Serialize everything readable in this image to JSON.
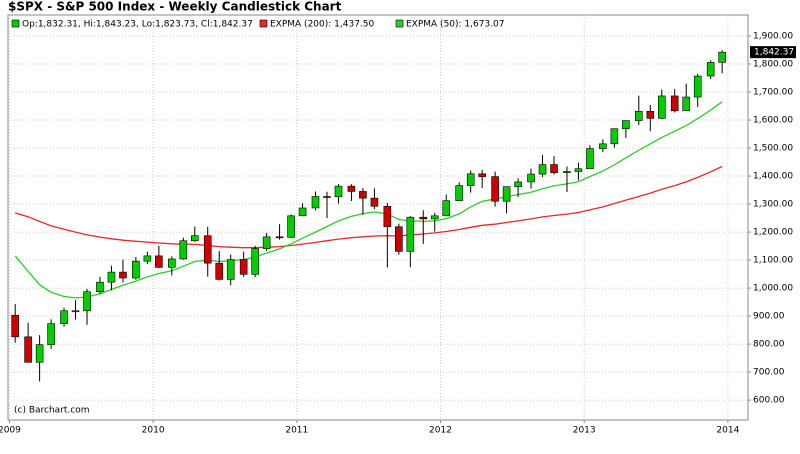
{
  "chart_data": {
    "type": "candlestick",
    "title": "$SPX - S&P 500 Index - Weekly Candlestick Chart",
    "ohlc_label": "Op:1,832.31, Hi:1,843.23, Lo:1,823.73, Cl:1,842.37",
    "last_label": "1,842.37",
    "credit": "(c) Barchart.com",
    "up_color": "#00cc00",
    "down_color": "#cc0000",
    "x": [
      2009.04,
      2009.13,
      2009.21,
      2009.29,
      2009.38,
      2009.46,
      2009.54,
      2009.63,
      2009.71,
      2009.79,
      2009.88,
      2009.96,
      2010.04,
      2010.13,
      2010.21,
      2010.29,
      2010.38,
      2010.46,
      2010.54,
      2010.63,
      2010.71,
      2010.79,
      2010.88,
      2010.96,
      2011.04,
      2011.13,
      2011.21,
      2011.29,
      2011.38,
      2011.46,
      2011.54,
      2011.63,
      2011.71,
      2011.79,
      2011.88,
      2011.96,
      2012.04,
      2012.13,
      2012.21,
      2012.29,
      2012.38,
      2012.46,
      2012.54,
      2012.63,
      2012.71,
      2012.79,
      2012.88,
      2012.96,
      2013.04,
      2013.13,
      2013.21,
      2013.29,
      2013.38,
      2013.46,
      2013.54,
      2013.63,
      2013.71,
      2013.79,
      2013.88,
      2013.96
    ],
    "open": [
      903,
      826,
      735,
      798,
      873,
      919,
      919,
      987,
      1021,
      1057,
      1036,
      1096,
      1115,
      1074,
      1104,
      1169,
      1187,
      1089,
      1031,
      1102,
      1049,
      1141,
      1183,
      1181,
      1258,
      1286,
      1327,
      1326,
      1364,
      1345,
      1321,
      1292,
      1219,
      1131,
      1253,
      1247,
      1258,
      1312,
      1366,
      1408,
      1398,
      1310,
      1362,
      1379,
      1407,
      1441,
      1412,
      1416,
      1426,
      1498,
      1515,
      1569,
      1598,
      1631,
      1606,
      1686,
      1633,
      1682,
      1757,
      1806
    ],
    "high": [
      943,
      876,
      832,
      888,
      930,
      957,
      997,
      1040,
      1080,
      1102,
      1111,
      1130,
      1151,
      1113,
      1180,
      1220,
      1219,
      1132,
      1120,
      1130,
      1151,
      1197,
      1228,
      1263,
      1303,
      1345,
      1344,
      1371,
      1371,
      1357,
      1356,
      1304,
      1230,
      1257,
      1278,
      1269,
      1334,
      1378,
      1420,
      1422,
      1416,
      1363,
      1392,
      1427,
      1475,
      1471,
      1434,
      1448,
      1510,
      1531,
      1570,
      1598,
      1687,
      1654,
      1709,
      1710,
      1730,
      1765,
      1814,
      1849
    ],
    "low": [
      805,
      735,
      667,
      783,
      862,
      888,
      869,
      979,
      992,
      1020,
      1030,
      1086,
      1072,
      1045,
      1101,
      1165,
      1041,
      1027,
      1010,
      1040,
      1039,
      1132,
      1173,
      1180,
      1257,
      1277,
      1250,
      1302,
      1311,
      1262,
      1282,
      1074,
      1119,
      1074,
      1158,
      1202,
      1258,
      1312,
      1341,
      1357,
      1291,
      1267,
      1325,
      1355,
      1396,
      1405,
      1343,
      1385,
      1426,
      1485,
      1501,
      1536,
      1582,
      1560,
      1604,
      1627,
      1633,
      1646,
      1746,
      1767
    ],
    "close": [
      826,
      735,
      798,
      873,
      919,
      919,
      987,
      1021,
      1057,
      1036,
      1096,
      1115,
      1074,
      1104,
      1169,
      1187,
      1089,
      1031,
      1102,
      1049,
      1141,
      1183,
      1181,
      1258,
      1286,
      1327,
      1326,
      1364,
      1345,
      1321,
      1292,
      1219,
      1131,
      1253,
      1247,
      1258,
      1312,
      1366,
      1408,
      1398,
      1310,
      1362,
      1379,
      1407,
      1441,
      1412,
      1416,
      1426,
      1498,
      1515,
      1569,
      1598,
      1631,
      1606,
      1686,
      1633,
      1682,
      1757,
      1806,
      1842.37
    ],
    "series": [
      {
        "name": "EXPMA (200): 1,437.50",
        "color": "#e8282b",
        "values": [
          1268,
          1255,
          1238,
          1222,
          1210,
          1200,
          1190,
          1182,
          1176,
          1171,
          1167,
          1164,
          1161,
          1158,
          1157,
          1156,
          1152,
          1148,
          1146,
          1144,
          1144,
          1146,
          1148,
          1152,
          1157,
          1163,
          1169,
          1175,
          1180,
          1183,
          1186,
          1187,
          1186,
          1190,
          1193,
          1197,
          1202,
          1209,
          1217,
          1224,
          1228,
          1234,
          1240,
          1247,
          1254,
          1259,
          1264,
          1270,
          1279,
          1290,
          1302,
          1314,
          1327,
          1339,
          1353,
          1366,
          1379,
          1395,
          1415,
          1434
        ]
      },
      {
        "name": "EXPMA (50): 1,673.07",
        "color": "#2ecc2e",
        "values": [
          1115,
          1060,
          1012,
          985,
          970,
          965,
          968,
          980,
          995,
          1010,
          1025,
          1040,
          1052,
          1062,
          1078,
          1095,
          1100,
          1095,
          1098,
          1102,
          1110,
          1125,
          1140,
          1158,
          1178,
          1200,
          1220,
          1240,
          1256,
          1266,
          1272,
          1265,
          1245,
          1240,
          1238,
          1240,
          1248,
          1265,
          1290,
          1310,
          1318,
          1326,
          1334,
          1342,
          1355,
          1365,
          1372,
          1380,
          1398,
          1418,
          1440,
          1465,
          1492,
          1515,
          1538,
          1560,
          1580,
          1605,
          1635,
          1665
        ]
      }
    ],
    "xlim": [
      2008.99,
      2014.14
    ],
    "xticks": [
      2009,
      2010,
      2011,
      2012,
      2013,
      2014
    ],
    "ylim": [
      529,
      1975
    ],
    "yticks": [
      {
        "value": 600,
        "label": "600.00"
      },
      {
        "value": 700,
        "label": "700.00"
      },
      {
        "value": 800,
        "label": "800.00"
      },
      {
        "value": 900,
        "label": "900.00"
      },
      {
        "value": 1000,
        "label": "1,000.00"
      },
      {
        "value": 1100,
        "label": "1,100.00"
      },
      {
        "value": 1200,
        "label": "1,200.00"
      },
      {
        "value": 1300,
        "label": "1,300.00"
      },
      {
        "value": 1400,
        "label": "1,400.00"
      },
      {
        "value": 1500,
        "label": "1,500.00"
      },
      {
        "value": 1600,
        "label": "1,600.00"
      },
      {
        "value": 1700,
        "label": "1,700.00"
      },
      {
        "value": 1800,
        "label": "1,800.00"
      },
      {
        "value": 1900,
        "label": "1,900.00"
      }
    ],
    "grid": true
  }
}
